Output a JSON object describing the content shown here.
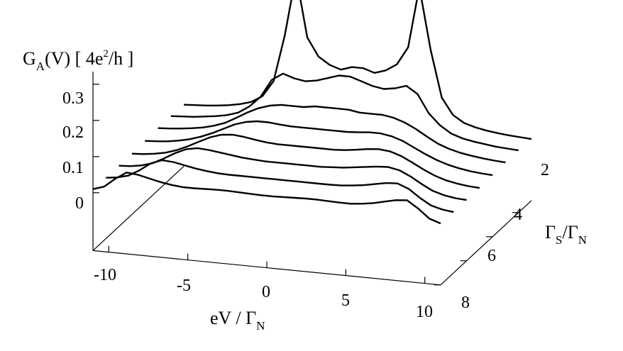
{
  "chart_data": {
    "type": "line",
    "subtype": "3d-waterfall",
    "zlabel": {
      "main": "G",
      "sub": "A",
      "after_sub": "(V)  [ 4e",
      "sup": "2",
      "after_sup": "/h ]"
    },
    "xlabel": {
      "main": "eV / Γ",
      "sub": "N"
    },
    "ylabel": {
      "main": "Γ",
      "sub": "S",
      "mid": "/Γ",
      "sub2": "N"
    },
    "x_ticks": [
      "-10",
      "-5",
      "0",
      "5",
      "10"
    ],
    "y_ticks": [
      "2",
      "4",
      "6",
      "8"
    ],
    "z_ticks": [
      "0",
      "0.1",
      "0.2",
      "0.3"
    ],
    "x_range": [
      -11,
      11
    ],
    "y_range": [
      1,
      8
    ],
    "z_range": [
      0,
      0.3
    ],
    "grid": false,
    "series": [
      {
        "gs": 1,
        "values": [
          0.01,
          0.012,
          0.014,
          0.017,
          0.021,
          0.027,
          0.036,
          0.055,
          0.1,
          0.23,
          0.4,
          0.23,
          0.18,
          0.16,
          0.15,
          0.16,
          0.16,
          0.15,
          0.16,
          0.18,
          0.23,
          0.4,
          0.23,
          0.1,
          0.055,
          0.036,
          0.027,
          0.021,
          0.017,
          0.014,
          0.012,
          0.01
        ]
      },
      {
        "gs": 2,
        "values": [
          0.012,
          0.014,
          0.016,
          0.02,
          0.024,
          0.03,
          0.04,
          0.06,
          0.09,
          0.14,
          0.16,
          0.15,
          0.145,
          0.15,
          0.16,
          0.17,
          0.17,
          0.16,
          0.15,
          0.145,
          0.15,
          0.16,
          0.14,
          0.09,
          0.06,
          0.04,
          0.03,
          0.024,
          0.02,
          0.016,
          0.014,
          0.012
        ]
      },
      {
        "gs": 3,
        "values": [
          0.012,
          0.014,
          0.017,
          0.021,
          0.026,
          0.034,
          0.045,
          0.062,
          0.08,
          0.095,
          0.105,
          0.11,
          0.11,
          0.11,
          0.115,
          0.115,
          0.115,
          0.115,
          0.11,
          0.11,
          0.11,
          0.105,
          0.095,
          0.08,
          0.062,
          0.045,
          0.034,
          0.026,
          0.021,
          0.017,
          0.014,
          0.012
        ]
      },
      {
        "gs": 4,
        "values": [
          0.01,
          0.012,
          0.015,
          0.02,
          0.027,
          0.037,
          0.05,
          0.065,
          0.08,
          0.09,
          0.095,
          0.095,
          0.092,
          0.09,
          0.09,
          0.09,
          0.09,
          0.09,
          0.09,
          0.092,
          0.095,
          0.095,
          0.09,
          0.08,
          0.065,
          0.05,
          0.037,
          0.027,
          0.02,
          0.015,
          0.012,
          0.01
        ]
      },
      {
        "gs": 5,
        "values": [
          0.008,
          0.01,
          0.014,
          0.02,
          0.03,
          0.044,
          0.06,
          0.075,
          0.085,
          0.088,
          0.085,
          0.08,
          0.076,
          0.074,
          0.074,
          0.074,
          0.074,
          0.074,
          0.074,
          0.076,
          0.08,
          0.085,
          0.088,
          0.085,
          0.075,
          0.06,
          0.044,
          0.03,
          0.02,
          0.014,
          0.01,
          0.008
        ]
      },
      {
        "gs": 6,
        "values": [
          0.008,
          0.01,
          0.015,
          0.024,
          0.04,
          0.058,
          0.072,
          0.078,
          0.076,
          0.072,
          0.068,
          0.064,
          0.062,
          0.06,
          0.06,
          0.06,
          0.06,
          0.06,
          0.06,
          0.062,
          0.064,
          0.068,
          0.072,
          0.076,
          0.078,
          0.072,
          0.058,
          0.04,
          0.024,
          0.015,
          0.01,
          0.008
        ]
      },
      {
        "gs": 7,
        "values": [
          0.008,
          0.012,
          0.02,
          0.038,
          0.06,
          0.072,
          0.07,
          0.064,
          0.058,
          0.054,
          0.051,
          0.05,
          0.05,
          0.05,
          0.05,
          0.05,
          0.05,
          0.05,
          0.05,
          0.05,
          0.05,
          0.051,
          0.054,
          0.058,
          0.064,
          0.07,
          0.072,
          0.06,
          0.038,
          0.02,
          0.012,
          0.008
        ]
      },
      {
        "gs": 8,
        "values": [
          0.01,
          0.02,
          0.045,
          0.065,
          0.062,
          0.055,
          0.048,
          0.043,
          0.04,
          0.04,
          0.041,
          0.042,
          0.042,
          0.041,
          0.04,
          0.039,
          0.039,
          0.04,
          0.041,
          0.042,
          0.042,
          0.041,
          0.04,
          0.04,
          0.043,
          0.048,
          0.055,
          0.062,
          0.065,
          0.045,
          0.02,
          0.01
        ]
      }
    ]
  }
}
